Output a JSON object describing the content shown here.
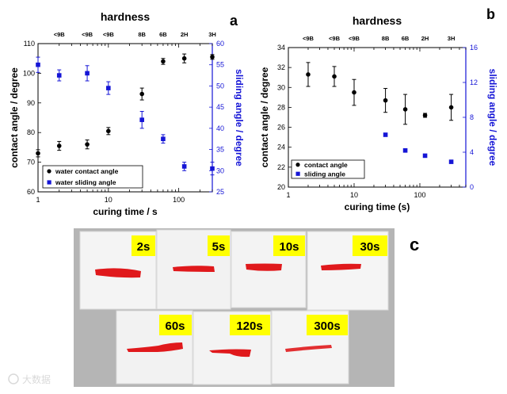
{
  "panels": {
    "a": "a",
    "b": "b",
    "c": "c"
  },
  "hardness_title": "hardness",
  "colors": {
    "contact": "#000000",
    "sliding": "#1515d6",
    "swatch": "#e0191c",
    "label_bg": "#ffff00",
    "photo_bg": "#b3b3b3"
  },
  "chart_data": [
    {
      "id": "a",
      "type": "scatter",
      "xscale": "log",
      "xlim": [
        1,
        300
      ],
      "xticks": [
        "1",
        "10",
        "100"
      ],
      "xlabel": "curing time / s",
      "ylabel_left": "contact angle / degree",
      "ylim_left": [
        60,
        110
      ],
      "yticks_left": [
        60,
        70,
        80,
        90,
        100,
        110
      ],
      "ylabel_right": "sliding angle / degree",
      "ylim_right": [
        25,
        60
      ],
      "yticks_right": [
        25,
        30,
        35,
        40,
        45,
        50,
        55,
        60
      ],
      "top_axis_title": "hardness",
      "top_axis": [
        {
          "x": 2,
          "label": "<9B"
        },
        {
          "x": 5,
          "label": "<9B"
        },
        {
          "x": 10,
          "label": "<9B"
        },
        {
          "x": 30,
          "label": "8B"
        },
        {
          "x": 60,
          "label": "6B"
        },
        {
          "x": 120,
          "label": "2H"
        },
        {
          "x": 300,
          "label": "3H"
        }
      ],
      "legend": [
        "water contact angle",
        "water sliding angle"
      ],
      "legend_position": "bottom-left",
      "series": [
        {
          "name": "water contact angle",
          "axis": "left",
          "marker": "circle",
          "x": [
            1,
            2,
            5,
            10,
            30,
            60,
            120,
            300
          ],
          "y": [
            73,
            75.5,
            76,
            80.5,
            93,
            104,
            105,
            105.5
          ],
          "err": [
            1.2,
            1.5,
            1.5,
            1.2,
            2,
            1,
            1.5,
            0.8
          ]
        },
        {
          "name": "water sliding angle",
          "axis": "right",
          "marker": "square",
          "x": [
            1,
            2,
            5,
            10,
            30,
            60,
            120,
            300
          ],
          "y": [
            55,
            52.5,
            53,
            49.5,
            42,
            37.5,
            31,
            30.5
          ],
          "err": [
            1.8,
            1.3,
            1.8,
            1.5,
            2,
            1,
            1,
            1.5
          ]
        }
      ]
    },
    {
      "id": "b",
      "type": "scatter",
      "xscale": "log",
      "xlim": [
        1,
        500
      ],
      "xticks": [
        "1",
        "10",
        "100"
      ],
      "xlabel": "curing time (s)",
      "ylabel_left": "contact angle / degree",
      "ylim_left": [
        20,
        34
      ],
      "yticks_left": [
        20,
        22,
        24,
        26,
        28,
        30,
        32,
        34
      ],
      "ylabel_right": "sliding angle / degree",
      "ylim_right": [
        0,
        16
      ],
      "yticks_right": [
        0,
        4,
        8,
        12,
        16
      ],
      "top_axis_title": "hardness",
      "top_axis": [
        {
          "x": 2,
          "label": "<9B"
        },
        {
          "x": 5,
          "label": "<9B"
        },
        {
          "x": 10,
          "label": "<9B"
        },
        {
          "x": 30,
          "label": "8B"
        },
        {
          "x": 60,
          "label": "6B"
        },
        {
          "x": 120,
          "label": "2H"
        },
        {
          "x": 300,
          "label": "3H"
        }
      ],
      "legend": [
        "contact angle",
        "sliding angle"
      ],
      "legend_position": "bottom-left",
      "series": [
        {
          "name": "contact angle",
          "axis": "left",
          "marker": "circle",
          "x": [
            2,
            5,
            10,
            30,
            60,
            120,
            300
          ],
          "y": [
            31.3,
            31.1,
            29.5,
            28.7,
            27.8,
            27.2,
            28
          ],
          "err": [
            1.2,
            1,
            1.3,
            1.2,
            1.5,
            0.2,
            1.3
          ]
        },
        {
          "name": "sliding angle",
          "axis": "right",
          "marker": "square",
          "x": [
            30,
            60,
            120,
            300
          ],
          "y": [
            6,
            4.2,
            3.6,
            2.9
          ],
          "err": [
            0,
            0,
            0,
            0
          ]
        }
      ]
    }
  ],
  "photo_labels": [
    "2s",
    "5s",
    "10s",
    "30s",
    "60s",
    "120s",
    "300s"
  ],
  "watermark": "大数据"
}
